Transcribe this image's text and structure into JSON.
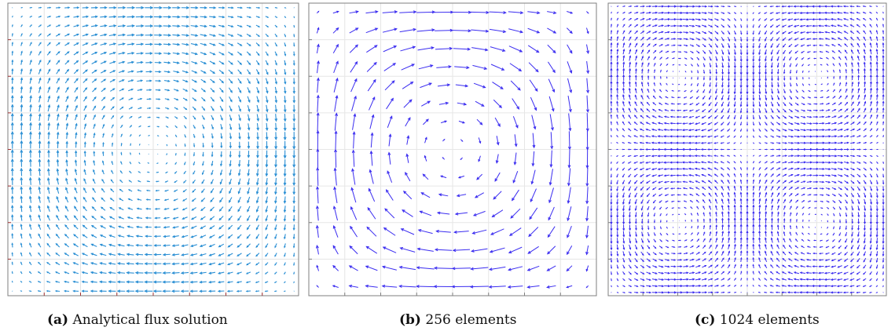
{
  "figure": {
    "panels": [
      {
        "id": "a",
        "caption_label": "(a)",
        "caption_text": "Analytical flux solution",
        "arrow_color": "#2a8fd4",
        "grid_color": "#e3e3e3",
        "frame_color": "#7f7f7f",
        "tick_color": "#a03030"
      },
      {
        "id": "b",
        "caption_label": "(b)",
        "caption_text": "256 elements",
        "arrow_color": "#3a2cf0",
        "grid_color": "#e6e6e6",
        "frame_color": "#7f7f7f",
        "tick_color": "#7f7f7f"
      },
      {
        "id": "c",
        "caption_label": "(c)",
        "caption_text": "1024 elements",
        "arrow_color": "#3a2cf0",
        "grid_color": "#e6e6e6",
        "frame_color": "#7f7f7f",
        "tick_color": "#7f7f7f"
      }
    ]
  },
  "chart_data": [
    {
      "type": "quiver",
      "field": "vortex",
      "grid_points": [
        32,
        32
      ],
      "xlim": [
        0,
        1
      ],
      "ylim": [
        0,
        1
      ],
      "grid": true,
      "gridlines": [
        8,
        8
      ],
      "title": "",
      "xlabel": "",
      "ylabel": ""
    },
    {
      "type": "quiver",
      "field": "vortex",
      "grid_points": [
        16,
        16
      ],
      "xlim": [
        0,
        1
      ],
      "ylim": [
        0,
        1
      ],
      "grid": true,
      "gridlines": [
        8,
        8
      ],
      "title": "",
      "xlabel": "",
      "ylabel": ""
    },
    {
      "type": "quiver",
      "field": "multi-vortex",
      "grid_points": [
        45,
        45
      ],
      "xlim": [
        0,
        1
      ],
      "ylim": [
        0,
        1
      ],
      "grid": true,
      "gridlines": [
        8,
        8
      ],
      "title": "",
      "xlabel": "",
      "ylabel": ""
    }
  ]
}
